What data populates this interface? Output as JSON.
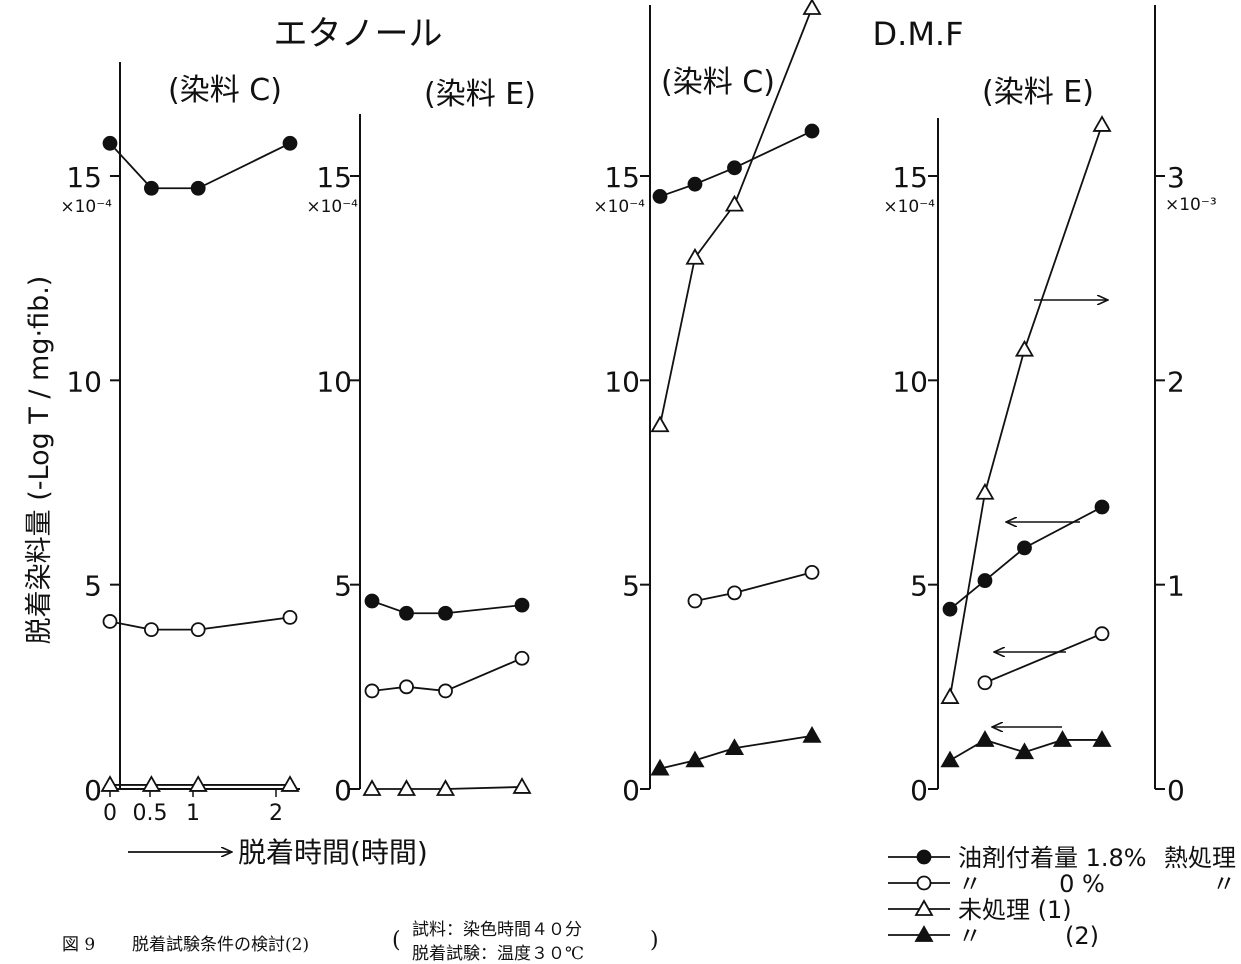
{
  "figure": {
    "caption_number": "図 9",
    "caption_title": "脱着試験条件の検討(2)",
    "paren_open": "(",
    "paren_close": ")",
    "condition_line1": "試料：染色時間４０分",
    "condition_line2": "脱着試験：温度３０℃"
  },
  "chart_data": {
    "type": "line",
    "ylabel": "脱着染料量 (-Log T / mg·fib.)",
    "xlabel": "脱着時間(時間)",
    "solvent_labels": [
      "エタノール",
      "D.M.F"
    ],
    "legend": [
      {
        "marker": "filled-circle",
        "label": "油剤付着量 1.8%",
        "extra": "熱処理"
      },
      {
        "marker": "open-circle",
        "label": "〃",
        "mid": "0 %",
        "extra": "〃"
      },
      {
        "marker": "open-triangle",
        "label": "未処理 (1)"
      },
      {
        "marker": "filled-triangle",
        "label": "〃",
        "mid": "(2)"
      }
    ],
    "colors": {
      "ink": "#111111"
    },
    "panels": [
      {
        "title": "(染料 C)",
        "y_tick_labels": [
          "0",
          "5",
          "10",
          "15"
        ],
        "y_multiplier": "×10⁻⁴",
        "x_tick_labels": [
          "0",
          "0.5",
          "1",
          "2"
        ],
        "x_ticks": [
          0,
          0.5,
          1,
          2
        ],
        "xlim": [
          0,
          2.2
        ],
        "ylim": [
          0,
          16
        ],
        "series": [
          {
            "marker": "filled-circle",
            "x": [
              0.1,
              0.5,
              1,
              2
            ],
            "y": [
              15.8,
              14.7,
              14.7,
              15.8
            ]
          },
          {
            "marker": "open-circle",
            "x": [
              0.1,
              0.5,
              1,
              2
            ],
            "y": [
              4.1,
              3.9,
              3.9,
              4.2
            ]
          },
          {
            "marker": "open-triangle",
            "x": [
              0.1,
              0.5,
              1,
              2
            ],
            "y": [
              0.1,
              0.1,
              0.1,
              0.1
            ]
          }
        ]
      },
      {
        "title": "(染料 E)",
        "y_tick_labels": [
          "0",
          "5",
          "10",
          "15"
        ],
        "y_multiplier": "×10⁻⁴",
        "x_ticks": [
          0,
          0.5,
          1,
          2
        ],
        "xlim": [
          0,
          2.2
        ],
        "ylim": [
          0,
          16
        ],
        "series": [
          {
            "marker": "filled-circle",
            "x": [
              0.1,
              0.5,
              1,
              2
            ],
            "y": [
              4.6,
              4.3,
              4.3,
              4.5
            ]
          },
          {
            "marker": "open-circle",
            "x": [
              0.1,
              0.5,
              1,
              2
            ],
            "y": [
              2.4,
              2.5,
              2.4,
              3.2
            ]
          },
          {
            "marker": "open-triangle",
            "x": [
              0.1,
              0.5,
              1,
              2
            ],
            "y": [
              0.0,
              0.0,
              0.0,
              0.05
            ]
          }
        ]
      },
      {
        "title": "(染料 C)",
        "y_tick_labels": [
          "0",
          "5",
          "10",
          "15"
        ],
        "y_multiplier": "×10⁻⁴",
        "x_ticks": [
          0,
          0.5,
          1,
          2
        ],
        "xlim": [
          0,
          2.2
        ],
        "ylim": [
          0,
          16
        ],
        "series": [
          {
            "marker": "filled-circle",
            "x": [
              0.1,
              0.5,
              1,
              2
            ],
            "y": [
              14.5,
              14.8,
              15.2,
              16.1
            ]
          },
          {
            "marker": "open-triangle",
            "x": [
              0.1,
              0.5,
              1,
              2
            ],
            "y": [
              8.9,
              13.0,
              14.3,
              19.2
            ]
          },
          {
            "marker": "open-circle",
            "x": [
              0.5,
              1,
              2
            ],
            "y": [
              4.6,
              4.8,
              5.3
            ]
          },
          {
            "marker": "filled-triangle",
            "x": [
              0.1,
              0.5,
              1,
              2
            ],
            "y": [
              0.5,
              0.7,
              1.0,
              1.3
            ]
          }
        ]
      },
      {
        "title": "(染料 E)",
        "y_tick_labels": [
          "0",
          "5",
          "10",
          "15"
        ],
        "y_multiplier": "×10⁻⁴",
        "right_tick_labels": [
          "0",
          "1",
          "2",
          "3"
        ],
        "right_multiplier": "×10⁻³",
        "x_ticks": [
          0,
          0.5,
          1,
          2
        ],
        "xlim": [
          0,
          2.2
        ],
        "ylim": [
          0,
          16
        ],
        "right_ylim": [
          0,
          3.2
        ],
        "series": [
          {
            "marker": "open-triangle",
            "axis": "right",
            "x": [
              0.1,
              0.5,
              1,
              2
            ],
            "y": [
              0.45,
              1.45,
              2.15,
              3.25
            ]
          },
          {
            "marker": "filled-circle",
            "axis": "left",
            "x": [
              0.1,
              0.5,
              1,
              2
            ],
            "y": [
              4.4,
              5.1,
              5.9,
              6.9
            ]
          },
          {
            "marker": "open-circle",
            "axis": "left",
            "x": [
              0.5,
              2
            ],
            "y": [
              2.6,
              3.8
            ]
          },
          {
            "marker": "filled-triangle",
            "axis": "left",
            "x": [
              0.1,
              0.5,
              1,
              1.5,
              2
            ],
            "y": [
              0.7,
              1.2,
              0.9,
              1.2,
              1.2
            ]
          }
        ]
      }
    ]
  }
}
